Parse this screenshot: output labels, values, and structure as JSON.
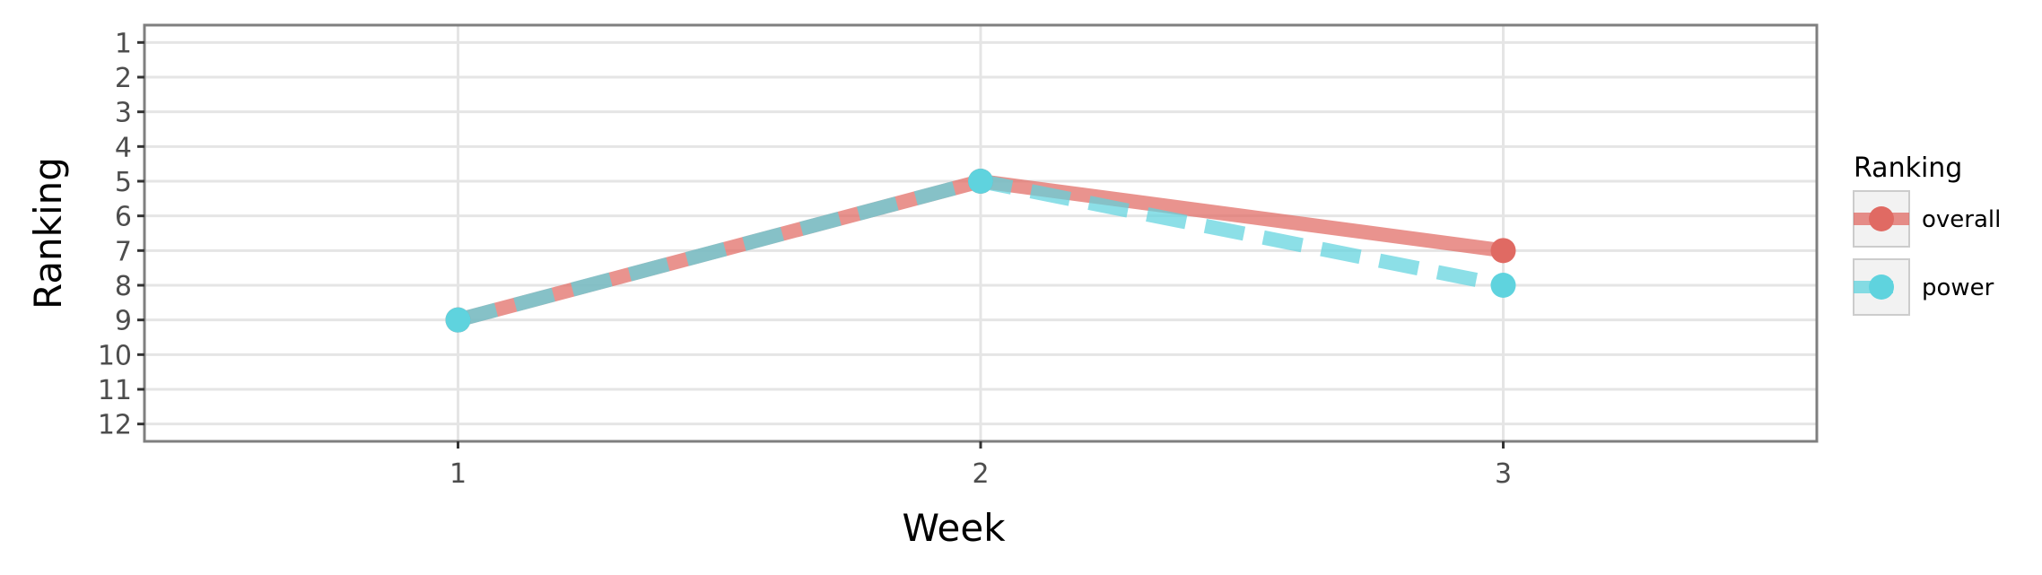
{
  "chart_data": {
    "type": "line",
    "x": [
      1,
      2,
      3
    ],
    "series": [
      {
        "name": "overall",
        "values": [
          9,
          5,
          7
        ],
        "color": "#e06a63",
        "line_style": "solid"
      },
      {
        "name": "power",
        "values": [
          9,
          5,
          8
        ],
        "color": "#5fd3de",
        "line_style": "dashed"
      }
    ],
    "xlabel": "Week",
    "ylabel": "Ranking",
    "x_ticks": [
      "1",
      "2",
      "3"
    ],
    "y_ticks": [
      "1",
      "2",
      "3",
      "4",
      "5",
      "6",
      "7",
      "8",
      "9",
      "10",
      "11",
      "12"
    ],
    "xlim": [
      0.4,
      3.6
    ],
    "ylim": [
      12.5,
      0.5
    ],
    "y_reversed": true,
    "grid": true,
    "legend_title": "Ranking",
    "legend_position": "right"
  }
}
